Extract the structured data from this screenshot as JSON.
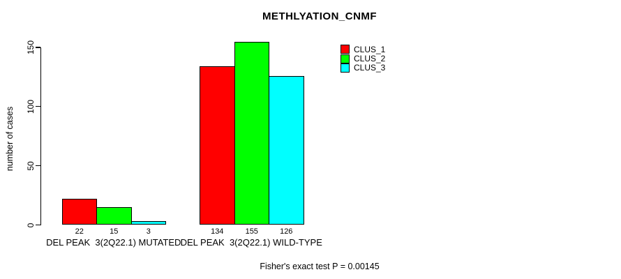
{
  "chart_data": {
    "type": "bar",
    "title": "METHLYATION_CNMF",
    "ylabel": "number of cases",
    "xlabel": "",
    "annotation": "Fisher's exact test P = 0.00145",
    "categories": [
      "DEL PEAK  3(2Q22.1) MUTATED",
      "DEL PEAK  3(2Q22.1) WILD-TYPE"
    ],
    "series": [
      {
        "name": "CLUS_1",
        "color": "#ff0000",
        "values": [
          22,
          134
        ]
      },
      {
        "name": "CLUS_2",
        "color": "#00ff00",
        "values": [
          15,
          155
        ]
      },
      {
        "name": "CLUS_3",
        "color": "#00ffff",
        "values": [
          3,
          126
        ]
      }
    ],
    "yticks": [
      0,
      50,
      100,
      150
    ],
    "ylim": [
      0,
      155
    ],
    "grid": false,
    "legend_position": "top-right",
    "show_bar_values": true
  },
  "colors": {
    "background": "#ffffff",
    "text": "#000000",
    "bar_border": "#000000"
  }
}
